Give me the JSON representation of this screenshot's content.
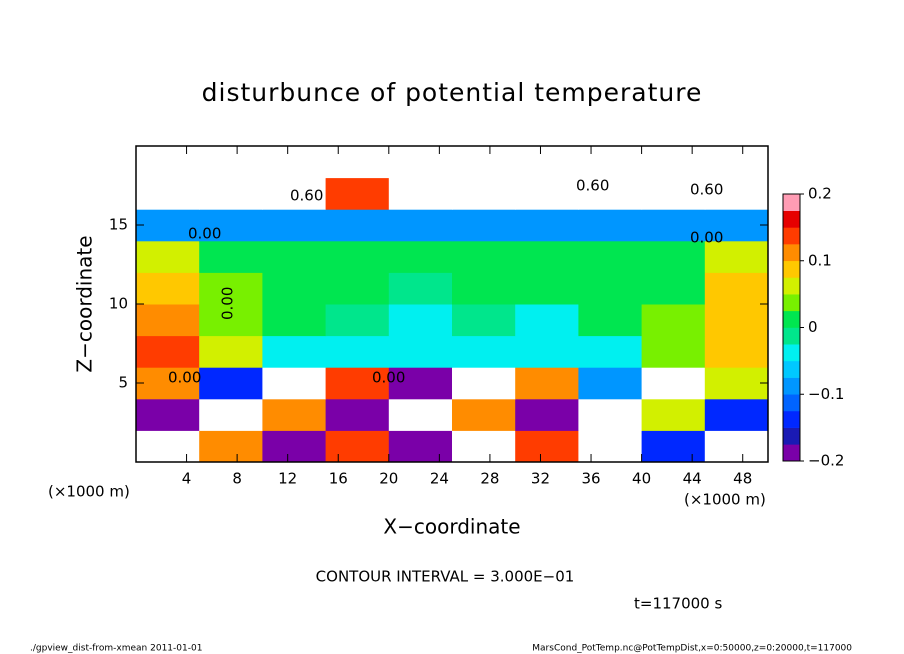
{
  "chart_data": {
    "type": "heatmap",
    "title": "disturbunce of potential temperature",
    "x_label": "X−coordinate",
    "y_label": "Z−coordinate",
    "x_unit": "(×1000 m)",
    "y_unit": "(×1000 m)",
    "x": [
      2.5,
      7.5,
      12.5,
      17.5,
      22.5,
      27.5,
      32.5,
      37.5,
      42.5,
      47.5
    ],
    "z": [
      1,
      3,
      5,
      7,
      9,
      11,
      13,
      15,
      17,
      19
    ],
    "values": [
      [
        0.3,
        0.1,
        -0.2,
        0.15,
        -0.2,
        0.3,
        0.15,
        0.3,
        -0.15,
        0.3
      ],
      [
        -0.2,
        0.3,
        0.1,
        -0.2,
        0.3,
        0.12,
        -0.2,
        0.3,
        0.05,
        -0.15
      ],
      [
        0.1,
        -0.15,
        0.3,
        0.15,
        -0.2,
        0.3,
        0.1,
        -0.1,
        0.3,
        0.05
      ],
      [
        0.15,
        0.05,
        -0.03,
        -0.04,
        -0.05,
        -0.04,
        -0.04,
        -0.05,
        0.03,
        0.08
      ],
      [
        0.1,
        0.03,
        0,
        -0.02,
        -0.03,
        -0.02,
        -0.03,
        0,
        0.03,
        0.08
      ],
      [
        0.08,
        0.03,
        0,
        0,
        -0.02,
        0,
        0,
        0,
        0.02,
        0.08
      ],
      [
        0.07,
        0.02,
        0,
        0,
        0,
        0,
        0,
        0,
        0.02,
        0.07
      ],
      [
        -0.1,
        -0.1,
        -0.1,
        -0.1,
        -0.1,
        -0.1,
        -0.1,
        -0.1,
        -0.1,
        -0.1
      ],
      [
        0.3,
        -0.3,
        0.3,
        0.15,
        0.3,
        -0.3,
        0.3,
        0.3,
        -0.3,
        0.3
      ],
      [
        0.3,
        0.3,
        -0.3,
        0.3,
        0.3,
        0.3,
        -0.3,
        0.3,
        0.3,
        0.3
      ]
    ],
    "xlim": [
      0,
      50
    ],
    "xticks": [
      4,
      8,
      12,
      16,
      20,
      24,
      28,
      32,
      36,
      40,
      44,
      48
    ],
    "ylim": [
      0,
      20
    ],
    "yticks": [
      5,
      10,
      15
    ],
    "colorbar": {
      "lim": [
        -0.2,
        0.2
      ],
      "ticks": [
        0.2,
        0.1,
        0,
        {
          "value": -0.1,
          "label": "−0.1"
        },
        {
          "value": -0.2,
          "label": "−0.2"
        }
      ],
      "colors": [
        "#7a00a8",
        "#1a1ab4",
        "#0028ff",
        "#0064ff",
        "#0096ff",
        "#00c8ff",
        "#00f0f0",
        "#00e68c",
        "#00e650",
        "#78f000",
        "#d2f000",
        "#ffc800",
        "#ff8c00",
        "#ff3c00",
        "#e60000",
        "#ff9cb4"
      ],
      "out_of_range_color": "#ffffff"
    },
    "contour_labels": [
      "0.00",
      "0.00",
      "0.00",
      "0.00",
      "0.00",
      "0.60",
      "0.60",
      "0.60"
    ],
    "annotation": "CONTOUR INTERVAL = 3.000E−01",
    "time_label": "t=117000 s",
    "footer_left": "./gpview_dist-from-xmean  2011-01-01",
    "footer_right": "MarsCond_PotTemp.nc@PotTempDist,x=0:50000,z=0:20000,t=117000"
  }
}
